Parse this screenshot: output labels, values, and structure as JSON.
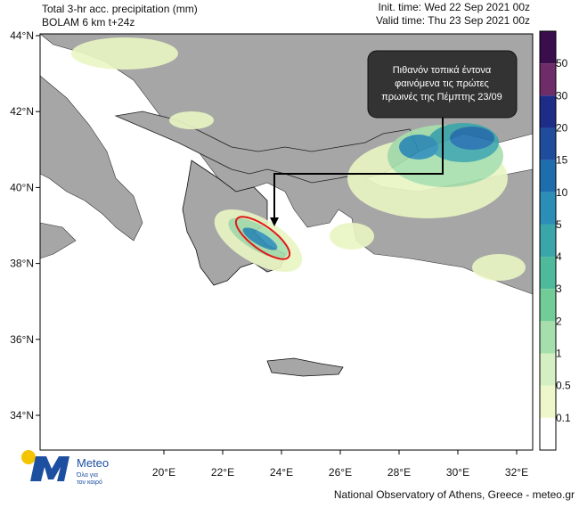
{
  "header": {
    "title": "Total 3-hr acc. precipitation (mm)",
    "model": "BOLAM 6 km t+24z",
    "init_time": "Init. time: Wed 22 Sep 2021 00z",
    "valid_time": "Valid time: Thu 23 Sep 2021 00z"
  },
  "map": {
    "lat_labels": [
      "44°N",
      "42°N",
      "40°N",
      "38°N",
      "36°N",
      "34°N"
    ],
    "lon_labels": [
      "20°E",
      "22°E",
      "24°E",
      "26°E",
      "28°E",
      "30°E",
      "32°E"
    ],
    "annotation": [
      "Πιθανόν τοπικά έντονα",
      "φαινόμενα τις πρώτες",
      "πρωινές της Πέμπτης 23/09"
    ]
  },
  "colorbar": {
    "labels": [
      "50",
      "30",
      "20",
      "15",
      "10",
      "5",
      "4",
      "3",
      "2",
      "1",
      "0.5",
      "0.1"
    ],
    "colors": [
      "#3a0d4d",
      "#6e2c68",
      "#1d2c86",
      "#1f4d9c",
      "#1e6dac",
      "#2c8db6",
      "#3ba6aa",
      "#4fba9b",
      "#72cc98",
      "#a6dfac",
      "#d4efc2",
      "#eef7c9",
      "#ffffff"
    ]
  },
  "logo": {
    "name": "Meteo",
    "tagline": [
      "Όλα για",
      "τον καιρό"
    ]
  },
  "footer": "National Observatory of Athens, Greece - meteo.gr"
}
